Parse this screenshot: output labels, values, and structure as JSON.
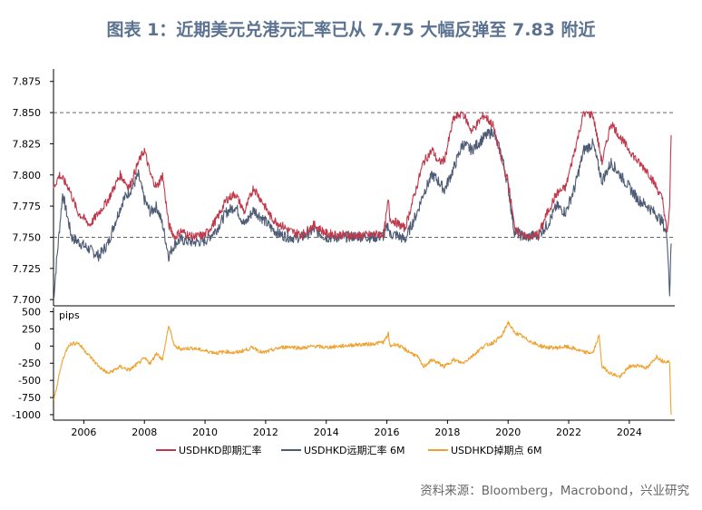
{
  "title": "图表 1：近期美元兑港元汇率已从 7.75 大幅反弹至 7.83 附近",
  "source": "资料来源：Bloomberg，Macrobond，兴业研究",
  "chart_data": [
    {
      "type": "line",
      "panel": "top",
      "ylim": [
        7.695,
        7.885
      ],
      "yticks": [
        "7.700",
        "7.725",
        "7.750",
        "7.775",
        "7.800",
        "7.825",
        "7.850",
        "7.875"
      ],
      "reference_lines": [
        7.75,
        7.85
      ],
      "x_start": 2005.0,
      "x_end": 2025.5,
      "series": [
        {
          "name": "USDHKD即期汇率",
          "color": "#c0394b",
          "x": [
            2005.0,
            2005.2,
            2005.5,
            2005.8,
            2006.2,
            2006.5,
            2006.8,
            2007.2,
            2007.5,
            2007.8,
            2008.0,
            2008.2,
            2008.4,
            2008.6,
            2008.8,
            2009.0,
            2009.2,
            2009.6,
            2010.0,
            2010.4,
            2010.7,
            2011.0,
            2011.3,
            2011.6,
            2011.9,
            2012.2,
            2012.5,
            2012.8,
            2013.2,
            2013.6,
            2014.0,
            2014.5,
            2015.0,
            2015.5,
            2015.9,
            2016.05,
            2016.1,
            2016.3,
            2016.6,
            2017.0,
            2017.2,
            2017.5,
            2017.7,
            2017.9,
            2018.2,
            2018.5,
            2018.8,
            2019.2,
            2019.5,
            2019.8,
            2020.0,
            2020.2,
            2020.4,
            2020.6,
            2021.0,
            2021.3,
            2021.6,
            2021.9,
            2022.2,
            2022.5,
            2022.8,
            2023.1,
            2023.4,
            2023.7,
            2024.0,
            2024.3,
            2024.6,
            2024.9,
            2025.1,
            2025.25,
            2025.33,
            2025.38
          ],
          "values": [
            7.79,
            7.8,
            7.79,
            7.77,
            7.76,
            7.77,
            7.78,
            7.8,
            7.79,
            7.81,
            7.82,
            7.8,
            7.79,
            7.8,
            7.76,
            7.75,
            7.755,
            7.75,
            7.752,
            7.765,
            7.78,
            7.785,
            7.77,
            7.79,
            7.778,
            7.765,
            7.76,
            7.755,
            7.752,
            7.76,
            7.753,
            7.752,
            7.751,
            7.752,
            7.753,
            7.78,
            7.765,
            7.762,
            7.757,
            7.792,
            7.81,
            7.82,
            7.81,
            7.812,
            7.845,
            7.85,
            7.835,
            7.848,
            7.84,
            7.81,
            7.795,
            7.76,
            7.752,
            7.75,
            7.752,
            7.77,
            7.785,
            7.79,
            7.82,
            7.85,
            7.848,
            7.81,
            7.842,
            7.83,
            7.82,
            7.81,
            7.803,
            7.79,
            7.78,
            7.752,
            7.775,
            7.832
          ]
        },
        {
          "name": "USDHKD远期汇率 6M",
          "color": "#4d5b75",
          "x": [
            2005.0,
            2005.1,
            2005.3,
            2005.6,
            2005.9,
            2006.2,
            2006.5,
            2006.8,
            2007.0,
            2007.3,
            2007.6,
            2007.8,
            2008.0,
            2008.2,
            2008.4,
            2008.6,
            2008.8,
            2009.0,
            2009.2,
            2009.6,
            2010.0,
            2010.4,
            2010.7,
            2011.0,
            2011.3,
            2011.6,
            2011.9,
            2012.2,
            2012.5,
            2012.8,
            2013.2,
            2013.6,
            2014.0,
            2014.5,
            2015.0,
            2015.5,
            2015.9,
            2016.05,
            2016.1,
            2016.3,
            2016.6,
            2017.0,
            2017.2,
            2017.5,
            2017.7,
            2017.9,
            2018.2,
            2018.5,
            2018.8,
            2019.2,
            2019.5,
            2019.8,
            2020.0,
            2020.2,
            2020.4,
            2020.6,
            2021.0,
            2021.3,
            2021.6,
            2021.9,
            2022.2,
            2022.5,
            2022.8,
            2023.1,
            2023.4,
            2023.7,
            2024.0,
            2024.3,
            2024.6,
            2024.9,
            2025.1,
            2025.25,
            2025.33,
            2025.38
          ],
          "values": [
            7.7,
            7.73,
            7.785,
            7.75,
            7.745,
            7.74,
            7.735,
            7.745,
            7.76,
            7.78,
            7.79,
            7.8,
            7.78,
            7.77,
            7.775,
            7.76,
            7.735,
            7.745,
            7.748,
            7.746,
            7.747,
            7.757,
            7.77,
            7.775,
            7.76,
            7.772,
            7.765,
            7.757,
            7.752,
            7.75,
            7.75,
            7.756,
            7.75,
            7.75,
            7.751,
            7.75,
            7.751,
            7.76,
            7.752,
            7.752,
            7.748,
            7.77,
            7.785,
            7.8,
            7.795,
            7.788,
            7.805,
            7.825,
            7.82,
            7.83,
            7.835,
            7.815,
            7.79,
            7.755,
            7.752,
            7.75,
            7.752,
            7.76,
            7.775,
            7.77,
            7.79,
            7.82,
            7.825,
            7.795,
            7.81,
            7.8,
            7.79,
            7.78,
            7.775,
            7.768,
            7.762,
            7.75,
            7.705,
            7.745
          ]
        }
      ]
    },
    {
      "type": "line",
      "panel": "bottom",
      "ylim": [
        -1080,
        560
      ],
      "yticks": [
        "500",
        "250",
        "0",
        "-250",
        "-500",
        "-750",
        "-1000"
      ],
      "unit_label": "pips",
      "xticks": [
        "2006",
        "2008",
        "2010",
        "2012",
        "2014",
        "2016",
        "2018",
        "2020",
        "2022",
        "2024"
      ],
      "series": [
        {
          "name": "USDHKD掉期点 6M",
          "color": "#f0a22e",
          "x": [
            2005.0,
            2005.1,
            2005.3,
            2005.5,
            2005.8,
            2006.2,
            2006.5,
            2006.8,
            2007.2,
            2007.5,
            2007.8,
            2008.0,
            2008.2,
            2008.4,
            2008.6,
            2008.8,
            2009.0,
            2009.2,
            2009.6,
            2010.0,
            2010.4,
            2010.7,
            2011.0,
            2011.3,
            2011.6,
            2011.9,
            2012.2,
            2012.5,
            2012.8,
            2013.2,
            2013.6,
            2014.0,
            2014.5,
            2015.0,
            2015.5,
            2015.9,
            2016.05,
            2016.1,
            2016.3,
            2016.6,
            2017.0,
            2017.2,
            2017.5,
            2017.7,
            2017.9,
            2018.2,
            2018.5,
            2018.8,
            2019.2,
            2019.5,
            2019.8,
            2020.0,
            2020.2,
            2020.4,
            2020.6,
            2021.0,
            2021.3,
            2021.6,
            2021.9,
            2022.2,
            2022.5,
            2022.8,
            2023.0,
            2023.1,
            2023.4,
            2023.7,
            2024.0,
            2024.3,
            2024.6,
            2024.9,
            2025.1,
            2025.25,
            2025.33,
            2025.38
          ],
          "values": [
            -800,
            -600,
            -200,
            20,
            50,
            -150,
            -300,
            -400,
            -300,
            -350,
            -250,
            -180,
            -250,
            -100,
            -200,
            300,
            -10,
            -40,
            -30,
            -70,
            -100,
            -80,
            -100,
            -60,
            -20,
            -100,
            -60,
            -20,
            -10,
            -30,
            0,
            -20,
            0,
            20,
            30,
            60,
            180,
            0,
            30,
            -50,
            -150,
            -300,
            -200,
            -250,
            -300,
            -200,
            -250,
            -150,
            0,
            50,
            150,
            350,
            200,
            160,
            100,
            10,
            -20,
            -25,
            -10,
            -40,
            -90,
            -100,
            150,
            -300,
            -400,
            -450,
            -300,
            -280,
            -320,
            -150,
            -220,
            -220,
            -240,
            -1000
          ]
        }
      ]
    }
  ],
  "legend": [
    {
      "label": "USDHKD即期汇率",
      "color": "#c0394b"
    },
    {
      "label": "USDHKD远期汇率 6M",
      "color": "#4d5b75"
    },
    {
      "label": "USDHKD掉期点 6M",
      "color": "#f0a22e"
    }
  ]
}
